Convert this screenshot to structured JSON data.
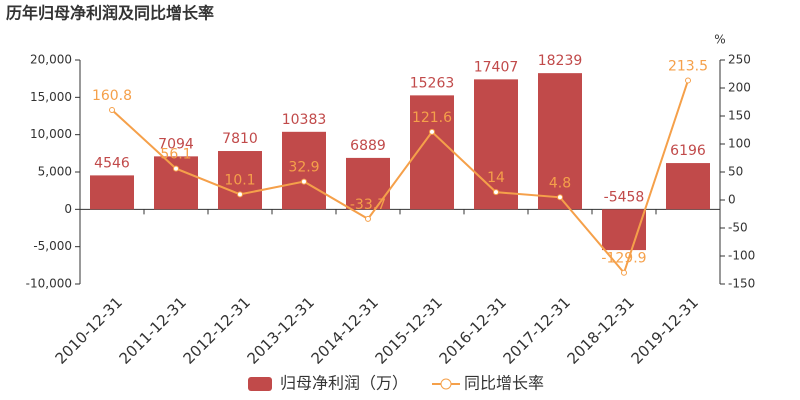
{
  "chart_data": {
    "type": "bar_line",
    "title": "历年归母净利润及同比增长率",
    "y2_unit": "%",
    "categories": [
      "2010-12-31",
      "2011-12-31",
      "2012-12-31",
      "2013-12-31",
      "2014-12-31",
      "2015-12-31",
      "2016-12-31",
      "2017-12-31",
      "2018-12-31",
      "2019-12-31"
    ],
    "series": [
      {
        "name": "归母净利润（万）",
        "type": "bar",
        "color": "#c14a4a",
        "values": [
          4546,
          7094,
          7810,
          10383,
          6889,
          15263,
          17407,
          18239,
          -5458,
          6196
        ]
      },
      {
        "name": "同比增长率",
        "type": "line",
        "axis": "y2",
        "color": "#f5a04a",
        "values": [
          160.8,
          56.1,
          10.1,
          32.9,
          -33.7,
          121.6,
          14,
          4.8,
          -129.9,
          213.5
        ]
      }
    ],
    "ylim": [
      -10000,
      20000
    ],
    "yticks": [
      {
        "value": -10000,
        "label": "-10,000"
      },
      {
        "value": -5000,
        "label": "-5,000"
      },
      0,
      {
        "value": 5000,
        "label": "5,000"
      },
      {
        "value": 10000,
        "label": "10,000"
      },
      {
        "value": 15000,
        "label": "15,000"
      },
      {
        "value": 20000,
        "label": "20,000"
      }
    ],
    "y2lim": [
      -150,
      250
    ],
    "y2ticks": [
      -150,
      -100,
      -50,
      0,
      50,
      100,
      150,
      200,
      250
    ]
  }
}
